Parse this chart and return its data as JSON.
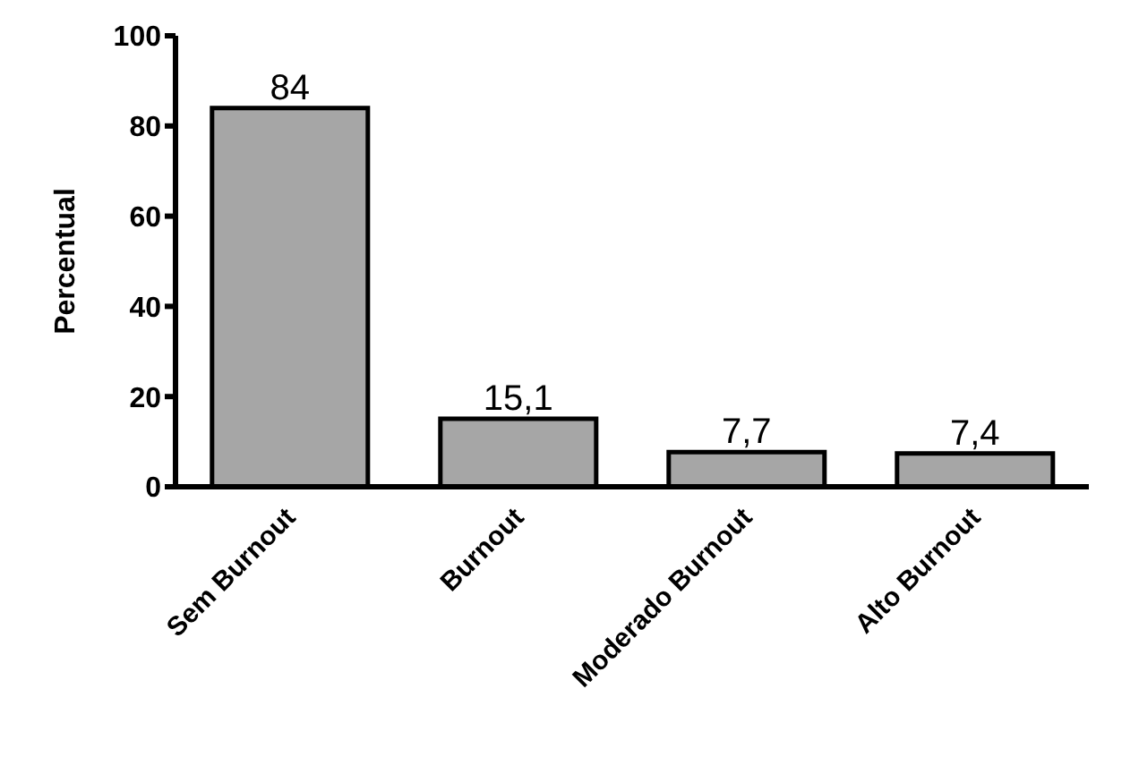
{
  "chart_data": {
    "type": "bar",
    "ylabel": "Percentual",
    "categories": [
      "Sem Burnout",
      "Burnout",
      "Moderado Burnout",
      "Alto Burnout"
    ],
    "values": [
      84,
      15.1,
      7.7,
      7.4
    ],
    "value_labels": [
      "84",
      "15,1",
      "7,7",
      "7,4"
    ],
    "color": "#a6a6a6",
    "ylim": [
      0,
      100
    ],
    "yticks": [
      0,
      20,
      40,
      60,
      80,
      100
    ],
    "grid": false
  }
}
